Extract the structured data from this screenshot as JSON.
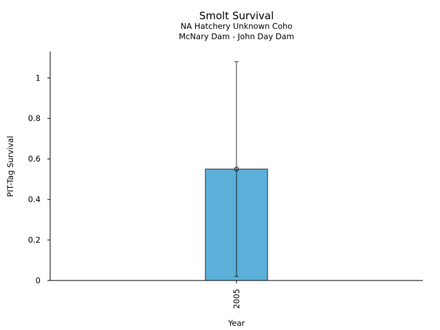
{
  "chart_data": {
    "type": "bar",
    "title": "Smolt Survival",
    "subtitle_lines": [
      "NA Hatchery Unknown Coho",
      "McNary Dam - John Day Dam"
    ],
    "xlabel": "Year",
    "ylabel": "PIT-Tag Survival",
    "categories": [
      "2005"
    ],
    "values": [
      0.55
    ],
    "error_low": [
      0.02
    ],
    "error_high": [
      1.08
    ],
    "ylim": [
      0,
      1.13
    ],
    "yticks": [
      0,
      0.2,
      0.4,
      0.6,
      0.8,
      1
    ],
    "ytick_labels": [
      "0",
      "0.2",
      "0.4",
      "0.6",
      "0.8",
      "1"
    ],
    "grid": false,
    "bar_color": "#5bafd8",
    "xtick_rotation": -90
  }
}
